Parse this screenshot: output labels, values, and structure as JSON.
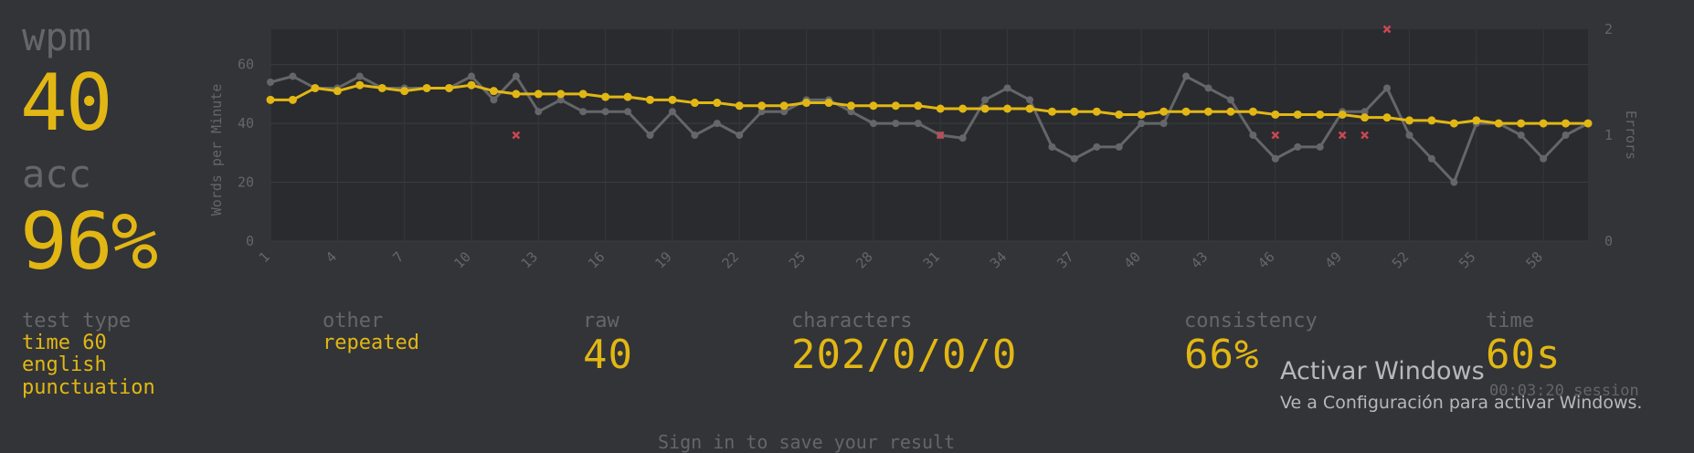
{
  "stats": {
    "wpm_label": "wpm",
    "wpm_value": "40",
    "acc_label": "acc",
    "acc_value": "96%"
  },
  "details": {
    "test_type_label": "test type",
    "test_type_lines": [
      "time 60",
      "english",
      "punctuation"
    ],
    "other_label": "other",
    "other_value": "repeated",
    "raw_label": "raw",
    "raw_value": "40",
    "characters_label": "characters",
    "characters_value": "202/0/0/0",
    "consistency_label": "consistency",
    "consistency_value": "66%",
    "time_label": "time",
    "time_value": "60s",
    "session_time": "00:03:20 session"
  },
  "footer": {
    "signin_text": "Sign in to save your result"
  },
  "watermark": {
    "title": "Activar Windows",
    "subtitle": "Ve a Configuración para activar Windows."
  },
  "colors": {
    "background": "#323437",
    "accent": "#e2b714",
    "muted": "#646669",
    "raw_line": "#646669",
    "error": "#ca4754"
  },
  "chart_data": {
    "type": "line",
    "xlabel": "",
    "ylabel": "Words per Minute",
    "y2label": "Errors",
    "ylim": [
      0,
      72
    ],
    "y2lim": [
      0,
      2
    ],
    "yticks": [
      0,
      20,
      40,
      60
    ],
    "y2ticks": [
      0,
      1,
      2
    ],
    "xlim": [
      1,
      60
    ],
    "xticks": [
      1,
      4,
      7,
      10,
      13,
      16,
      19,
      22,
      25,
      28,
      31,
      34,
      37,
      40,
      43,
      46,
      49,
      52,
      55,
      58
    ],
    "grid": true,
    "series": [
      {
        "type": "line",
        "values": [
          54,
          56,
          52,
          52,
          56,
          52,
          52,
          52,
          52,
          56,
          48,
          56,
          44,
          48,
          44,
          44,
          44,
          36,
          44,
          36,
          40,
          36,
          44,
          44,
          48,
          48,
          44,
          40,
          40,
          40,
          36,
          35,
          48,
          52,
          48,
          32,
          28,
          32,
          32,
          40,
          40,
          56,
          52,
          48,
          36,
          28,
          32,
          32,
          44,
          44,
          52,
          36,
          28,
          20,
          40,
          40,
          36,
          28,
          36,
          40
        ]
      },
      {
        "type": "line",
        "values": [
          48,
          48,
          52,
          51,
          53,
          52,
          51,
          52,
          52,
          53,
          51,
          50,
          50,
          50,
          50,
          49,
          49,
          48,
          48,
          47,
          47,
          46,
          46,
          46,
          47,
          47,
          46,
          46,
          46,
          46,
          45,
          45,
          45,
          45,
          45,
          44,
          44,
          44,
          43,
          43,
          44,
          44,
          44,
          44,
          44,
          43,
          43,
          43,
          43,
          42,
          42,
          41,
          41,
          40,
          41,
          40,
          40,
          40,
          40,
          40
        ]
      },
      {
        "type": "scatter",
        "x": [
          12,
          31,
          46,
          49,
          50,
          51
        ],
        "y": [
          1,
          1,
          1,
          1,
          1,
          2
        ]
      }
    ]
  }
}
